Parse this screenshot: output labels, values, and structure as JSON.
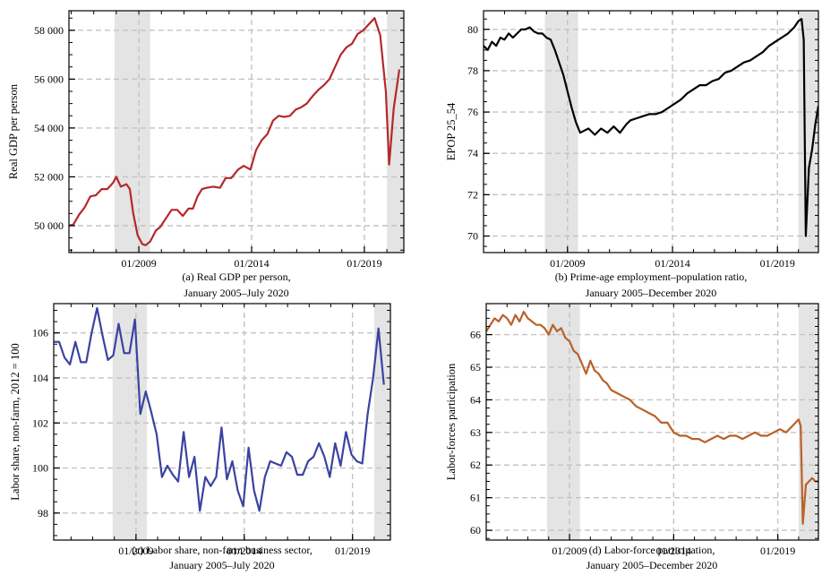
{
  "chart_data": [
    {
      "id": "a",
      "type": "line",
      "caption_line1": "(a) Real GDP per person,",
      "caption_line2": "January 2005–July 2020",
      "ylabel": "Real GDP per person",
      "xlabel": "",
      "xlim": [
        2005.9,
        2020.75
      ],
      "ylim": [
        48900,
        58800
      ],
      "xticks": [
        {
          "v": 2009.0,
          "label": "01/2009"
        },
        {
          "v": 2014.0,
          "label": "01/2014"
        },
        {
          "v": 2019.0,
          "label": "01/2019"
        }
      ],
      "yticks": [
        {
          "v": 50000,
          "label": "50 000"
        },
        {
          "v": 52000,
          "label": "52 000"
        },
        {
          "v": 54000,
          "label": "54 000"
        },
        {
          "v": 56000,
          "label": "56 000"
        },
        {
          "v": 58000,
          "label": "58 000"
        }
      ],
      "recessions": [
        [
          2007.92,
          2009.5
        ],
        [
          2020.0,
          2020.75
        ]
      ],
      "grid": true,
      "line_color": "#b5282a",
      "series": [
        {
          "x": [
            2005.9,
            2006.1,
            2006.35,
            2006.6,
            2006.85,
            2007.1,
            2007.35,
            2007.6,
            2007.85,
            2008.0,
            2008.2,
            2008.45,
            2008.6,
            2008.75,
            2008.95,
            2009.15,
            2009.3,
            2009.5,
            2009.75,
            2009.95,
            2010.2,
            2010.45,
            2010.7,
            2010.95,
            2011.2,
            2011.4,
            2011.6,
            2011.8,
            2012.0,
            2012.3,
            2012.6,
            2012.85,
            2013.1,
            2013.4,
            2013.65,
            2013.95,
            2014.2,
            2014.45,
            2014.7,
            2014.95,
            2015.2,
            2015.45,
            2015.7,
            2015.95,
            2016.2,
            2016.45,
            2016.7,
            2016.95,
            2017.2,
            2017.45,
            2017.7,
            2017.95,
            2018.2,
            2018.45,
            2018.7,
            2018.95,
            2019.2,
            2019.45,
            2019.7,
            2019.95,
            2020.1,
            2020.3,
            2020.55
          ],
          "y": [
            50000,
            50050,
            50450,
            50750,
            51200,
            51250,
            51500,
            51500,
            51750,
            52000,
            51600,
            51700,
            51500,
            50500,
            49600,
            49250,
            49200,
            49350,
            49800,
            49950,
            50300,
            50650,
            50650,
            50400,
            50700,
            50700,
            51200,
            51500,
            51550,
            51600,
            51550,
            51950,
            51950,
            52300,
            52450,
            52300,
            53100,
            53500,
            53750,
            54300,
            54500,
            54450,
            54500,
            54750,
            54850,
            55000,
            55300,
            55550,
            55750,
            56000,
            56500,
            57000,
            57300,
            57450,
            57850,
            58000,
            58250,
            58500,
            57800,
            55500,
            52500,
            54800,
            56400
          ]
        }
      ]
    },
    {
      "id": "b",
      "type": "line",
      "caption_line1": "(b) Prime-age employment–population ratio,",
      "caption_line2": "January 2005–December 2020",
      "ylabel": "EPOP 25_54",
      "xlabel": "",
      "xlim": [
        2005.0,
        2020.95
      ],
      "ylim": [
        69.2,
        80.9
      ],
      "xticks": [
        {
          "v": 2009.0,
          "label": "01/2009"
        },
        {
          "v": 2014.0,
          "label": "01/2014"
        },
        {
          "v": 2019.0,
          "label": "01/2019"
        }
      ],
      "yticks": [
        {
          "v": 70,
          "label": "70"
        },
        {
          "v": 72,
          "label": "72"
        },
        {
          "v": 74,
          "label": "74"
        },
        {
          "v": 76,
          "label": "76"
        },
        {
          "v": 78,
          "label": "78"
        },
        {
          "v": 80,
          "label": "80"
        }
      ],
      "recessions": [
        [
          2007.92,
          2009.5
        ],
        [
          2020.0,
          2020.95
        ]
      ],
      "grid": true,
      "line_color": "#000000",
      "series": [
        {
          "x": [
            2005.0,
            2005.2,
            2005.4,
            2005.6,
            2005.8,
            2006.0,
            2006.2,
            2006.4,
            2006.6,
            2006.8,
            2007.0,
            2007.2,
            2007.4,
            2007.6,
            2007.8,
            2008.0,
            2008.2,
            2008.4,
            2008.6,
            2008.8,
            2009.0,
            2009.2,
            2009.4,
            2009.6,
            2009.8,
            2010.0,
            2010.3,
            2010.6,
            2010.9,
            2011.2,
            2011.5,
            2011.8,
            2012.0,
            2012.3,
            2012.6,
            2012.9,
            2013.2,
            2013.5,
            2013.8,
            2014.1,
            2014.4,
            2014.7,
            2015.0,
            2015.3,
            2015.6,
            2015.9,
            2016.2,
            2016.5,
            2016.8,
            2017.1,
            2017.4,
            2017.7,
            2018.0,
            2018.3,
            2018.6,
            2018.9,
            2019.2,
            2019.5,
            2019.8,
            2020.0,
            2020.15,
            2020.25,
            2020.35,
            2020.5,
            2020.65,
            2020.8,
            2020.95
          ],
          "y": [
            79.2,
            79.0,
            79.4,
            79.2,
            79.6,
            79.5,
            79.8,
            79.6,
            79.8,
            80.0,
            80.0,
            80.1,
            79.9,
            79.8,
            79.8,
            79.6,
            79.5,
            79.0,
            78.4,
            77.8,
            77.0,
            76.2,
            75.5,
            75.0,
            75.1,
            75.2,
            74.9,
            75.2,
            75.0,
            75.3,
            75.0,
            75.4,
            75.6,
            75.7,
            75.8,
            75.9,
            75.9,
            76.0,
            76.2,
            76.4,
            76.6,
            76.9,
            77.1,
            77.3,
            77.3,
            77.5,
            77.6,
            77.9,
            78.0,
            78.2,
            78.4,
            78.5,
            78.7,
            78.9,
            79.2,
            79.4,
            79.6,
            79.8,
            80.1,
            80.4,
            80.5,
            79.5,
            70.0,
            73.3,
            74.2,
            75.4,
            76.3
          ]
        }
      ]
    },
    {
      "id": "c",
      "type": "line",
      "caption_line1": "(c) Labor share, non-farm business sector,",
      "caption_line2": "January 2005–July 2020",
      "ylabel": "Labor share, non-farm, 2012 = 100",
      "xlabel": "",
      "xlim": [
        2005.2,
        2020.75
      ],
      "ylim": [
        96.8,
        107.3
      ],
      "xticks": [
        {
          "v": 2009.0,
          "label": "01/2009"
        },
        {
          "v": 2014.0,
          "label": "01/2014"
        },
        {
          "v": 2019.0,
          "label": "01/2019"
        }
      ],
      "yticks": [
        {
          "v": 98,
          "label": "98"
        },
        {
          "v": 100,
          "label": "100"
        },
        {
          "v": 102,
          "label": "102"
        },
        {
          "v": 104,
          "label": "104"
        },
        {
          "v": 106,
          "label": "106"
        }
      ],
      "recessions": [
        [
          2007.92,
          2009.5
        ],
        [
          2020.0,
          2020.75
        ]
      ],
      "grid": true,
      "line_color": "#3a43a0",
      "series": [
        {
          "x": [
            2005.2,
            2005.45,
            2005.7,
            2005.95,
            2006.2,
            2006.45,
            2006.7,
            2006.95,
            2007.2,
            2007.45,
            2007.7,
            2007.95,
            2008.2,
            2008.45,
            2008.7,
            2008.95,
            2009.2,
            2009.45,
            2009.7,
            2009.95,
            2010.2,
            2010.45,
            2010.7,
            2010.95,
            2011.2,
            2011.45,
            2011.7,
            2011.95,
            2012.2,
            2012.45,
            2012.7,
            2012.95,
            2013.2,
            2013.45,
            2013.7,
            2013.95,
            2014.2,
            2014.45,
            2014.7,
            2014.95,
            2015.2,
            2015.45,
            2015.7,
            2015.95,
            2016.2,
            2016.45,
            2016.7,
            2016.95,
            2017.2,
            2017.45,
            2017.7,
            2017.95,
            2018.2,
            2018.45,
            2018.7,
            2018.95,
            2019.2,
            2019.45,
            2019.7,
            2019.95,
            2020.2,
            2020.45
          ],
          "y": [
            105.6,
            105.6,
            104.9,
            104.6,
            105.6,
            104.7,
            104.7,
            106.0,
            107.1,
            105.9,
            104.8,
            105.0,
            106.4,
            105.1,
            105.1,
            106.6,
            102.4,
            103.4,
            102.5,
            101.5,
            99.6,
            100.1,
            99.7,
            99.4,
            101.6,
            99.6,
            100.5,
            98.1,
            99.6,
            99.2,
            99.6,
            101.8,
            99.5,
            100.3,
            99.0,
            98.3,
            100.9,
            99.0,
            98.1,
            99.6,
            100.3,
            100.2,
            100.1,
            100.7,
            100.5,
            99.7,
            99.7,
            100.3,
            100.5,
            101.1,
            100.5,
            99.6,
            101.1,
            100.1,
            101.6,
            100.6,
            100.3,
            100.2,
            102.4,
            104.0,
            106.2,
            103.7
          ]
        }
      ]
    },
    {
      "id": "d",
      "type": "line",
      "caption_line1": "(d) Labor-force participation,",
      "caption_line2": "January 2005–December 2020",
      "ylabel": "Labor-forces participation",
      "xlabel": "",
      "xlim": [
        2005.0,
        2020.95
      ],
      "ylim": [
        59.7,
        66.95
      ],
      "xticks": [
        {
          "v": 2009.0,
          "label": "01/2009"
        },
        {
          "v": 2014.0,
          "label": "01/2014"
        },
        {
          "v": 2019.0,
          "label": "01/2019"
        }
      ],
      "yticks": [
        {
          "v": 60,
          "label": "60"
        },
        {
          "v": 61,
          "label": "61"
        },
        {
          "v": 62,
          "label": "62"
        },
        {
          "v": 63,
          "label": "63"
        },
        {
          "v": 64,
          "label": "64"
        },
        {
          "v": 65,
          "label": "65"
        },
        {
          "v": 66,
          "label": "66"
        }
      ],
      "recessions": [
        [
          2007.92,
          2009.5
        ],
        [
          2020.0,
          2020.95
        ]
      ],
      "grid": true,
      "line_color": "#b8612a",
      "series": [
        {
          "x": [
            2005.0,
            2005.2,
            2005.4,
            2005.6,
            2005.8,
            2006.0,
            2006.2,
            2006.4,
            2006.6,
            2006.8,
            2007.0,
            2007.2,
            2007.4,
            2007.6,
            2007.8,
            2008.0,
            2008.2,
            2008.4,
            2008.6,
            2008.8,
            2009.0,
            2009.2,
            2009.4,
            2009.6,
            2009.8,
            2010.0,
            2010.2,
            2010.4,
            2010.6,
            2010.8,
            2011.0,
            2011.3,
            2011.6,
            2011.9,
            2012.2,
            2012.5,
            2012.8,
            2013.1,
            2013.4,
            2013.7,
            2014.0,
            2014.3,
            2014.6,
            2014.9,
            2015.2,
            2015.5,
            2015.8,
            2016.1,
            2016.4,
            2016.7,
            2017.0,
            2017.3,
            2017.6,
            2017.9,
            2018.2,
            2018.5,
            2018.8,
            2019.1,
            2019.4,
            2019.7,
            2020.0,
            2020.1,
            2020.2,
            2020.35,
            2020.5,
            2020.65,
            2020.8,
            2020.95
          ],
          "y": [
            66.1,
            66.3,
            66.5,
            66.4,
            66.6,
            66.5,
            66.3,
            66.6,
            66.4,
            66.7,
            66.5,
            66.4,
            66.3,
            66.3,
            66.2,
            66.0,
            66.3,
            66.1,
            66.2,
            65.9,
            65.8,
            65.5,
            65.4,
            65.1,
            64.8,
            65.2,
            64.9,
            64.8,
            64.6,
            64.5,
            64.3,
            64.2,
            64.1,
            64.0,
            63.8,
            63.7,
            63.6,
            63.5,
            63.3,
            63.3,
            63.0,
            62.9,
            62.9,
            62.8,
            62.8,
            62.7,
            62.8,
            62.9,
            62.8,
            62.9,
            62.9,
            62.8,
            62.9,
            63.0,
            62.9,
            62.9,
            63.0,
            63.1,
            63.0,
            63.2,
            63.4,
            63.2,
            60.2,
            61.4,
            61.5,
            61.6,
            61.5,
            61.5
          ]
        }
      ]
    }
  ]
}
